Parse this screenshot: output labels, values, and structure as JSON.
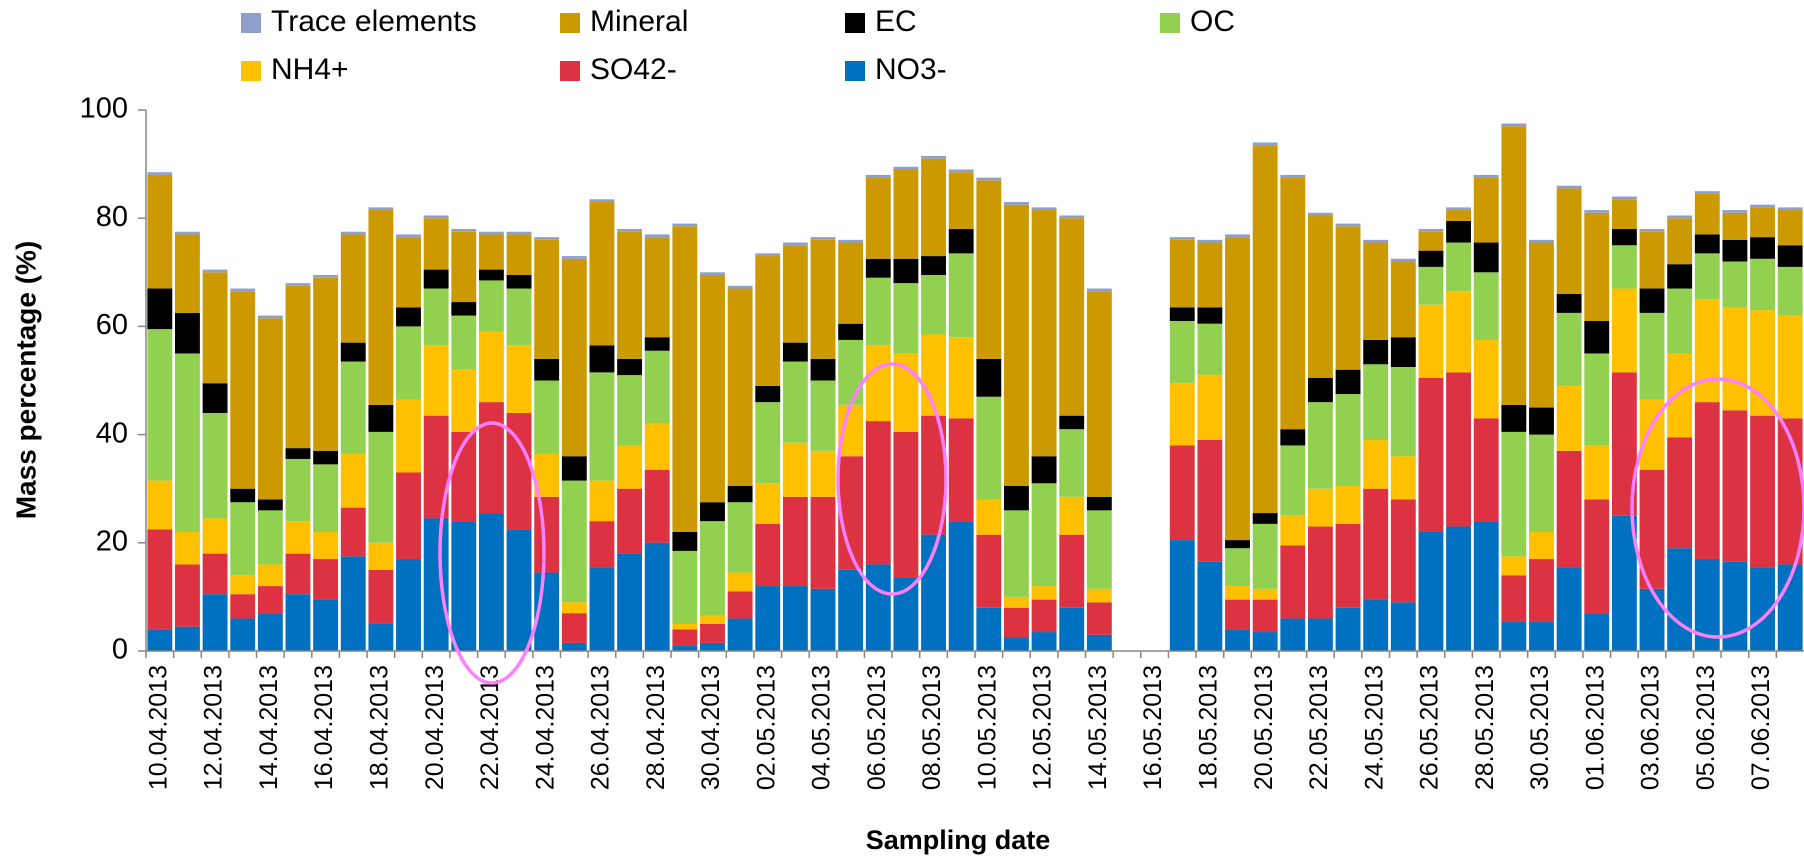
{
  "chart_data": {
    "type": "stacked_bar",
    "x_label": "Sampling date",
    "y_label": "Mass percentage (%)",
    "categories": [
      "10.04.2013",
      null,
      "12.04.2013",
      null,
      "14.04.2013",
      null,
      "16.04.2013",
      null,
      "18.04.2013",
      null,
      "20.04.2013",
      null,
      "22.04.2013",
      null,
      "24.04.2013",
      null,
      "26.04.2013",
      null,
      "28.04.2013",
      null,
      "30.04.2013",
      null,
      "02.05.2013",
      null,
      "04.05.2013",
      null,
      "06.05.2013",
      null,
      "08.05.2013",
      null,
      "10.05.2013",
      null,
      "12.05.2013",
      null,
      "14.05.2013",
      null,
      "16.05.2013",
      null,
      "18.05.2013",
      null,
      "20.05.2013",
      null,
      "22.05.2013",
      null,
      "24.05.2013",
      null,
      "26.05.2013",
      null,
      "28.05.2013",
      null,
      "30.05.2013",
      null,
      "01.06.2013",
      null,
      "03.06.2013",
      null,
      "05.06.2013",
      null,
      "07.06.2013",
      null
    ],
    "series": [
      {
        "name": "NO3-",
        "color": "#0070c0",
        "values": [
          4,
          4.5,
          10.5,
          6,
          7,
          10.5,
          9.5,
          17.5,
          5,
          17,
          24.5,
          24,
          25.5,
          22.5,
          14.5,
          1.5,
          15.5,
          18,
          20,
          1,
          1.5,
          6,
          12,
          12,
          11.5,
          15,
          16,
          13.5,
          21.5,
          24,
          8,
          2.5,
          3.5,
          8,
          3,
          null,
          null,
          20.5,
          16.5,
          4,
          3.5,
          6,
          6,
          8,
          9.5,
          9,
          22,
          23,
          24,
          5.5,
          5.5,
          15.5,
          7,
          25,
          11.5,
          19,
          17,
          16.5,
          15.5,
          16
        ]
      },
      {
        "name": "SO42-",
        "color": "#dc3242",
        "values": [
          18.5,
          11.5,
          7.5,
          4.5,
          5,
          7.5,
          7.5,
          9,
          10,
          16,
          19,
          16.5,
          20.5,
          21.5,
          14,
          5.5,
          8.5,
          12,
          13.5,
          3,
          3.5,
          5,
          11.5,
          16.5,
          17,
          21,
          26.5,
          27,
          22,
          19,
          13.5,
          5.5,
          6,
          13.5,
          6,
          null,
          null,
          17.5,
          22.5,
          5.5,
          6,
          13.5,
          17,
          15.5,
          20.5,
          19,
          28.5,
          28.5,
          19,
          8.5,
          11.5,
          21.5,
          21,
          26.5,
          22,
          20.5,
          29,
          28,
          28,
          27
        ]
      },
      {
        "name": "NH4+",
        "color": "#ffc000",
        "values": [
          9,
          6,
          6.5,
          3.5,
          4,
          6,
          5,
          10,
          5,
          13.5,
          13,
          11.5,
          13,
          12.5,
          8,
          2,
          7.5,
          8,
          8.5,
          1,
          1.5,
          3.5,
          7.5,
          10,
          8.5,
          9.5,
          14,
          14.5,
          15,
          15,
          6.5,
          2,
          2.5,
          7,
          2.5,
          null,
          null,
          11.5,
          12,
          2.5,
          2,
          5.5,
          7,
          7,
          9,
          8,
          13.5,
          15,
          14.5,
          3.5,
          5,
          12,
          10,
          15.5,
          13,
          15.5,
          19,
          19,
          19.5,
          19
        ]
      },
      {
        "name": "OC",
        "color": "#92d050",
        "values": [
          28,
          33,
          19.5,
          13.5,
          10,
          11.5,
          12.5,
          17,
          20.5,
          13.5,
          10.5,
          10,
          9.5,
          10.5,
          13.5,
          22.5,
          20,
          13,
          13.5,
          13.5,
          17.5,
          13,
          15,
          15,
          13,
          12,
          12.5,
          13,
          11,
          15.5,
          19,
          16,
          19,
          12.5,
          14.5,
          null,
          null,
          11.5,
          9.5,
          7,
          12,
          13,
          16,
          17,
          14,
          16.5,
          7,
          9,
          12.5,
          23,
          18,
          13.5,
          17,
          8,
          16,
          12,
          8.5,
          8.5,
          9.5,
          9
        ]
      },
      {
        "name": "EC",
        "color": "#000000",
        "values": [
          7.5,
          7.5,
          5.5,
          2.5,
          2,
          2,
          2.5,
          3.5,
          5,
          3.5,
          3.5,
          2.5,
          2,
          2.5,
          4,
          4.5,
          5,
          3,
          2.5,
          3.5,
          3.5,
          3,
          3,
          3.5,
          4,
          3,
          3.5,
          4.5,
          3.5,
          4.5,
          7,
          4.5,
          5,
          2.5,
          2.5,
          null,
          null,
          2.5,
          3,
          1.5,
          2,
          3,
          4.5,
          4.5,
          4.5,
          5.5,
          3,
          4,
          5.5,
          5,
          5,
          3.5,
          6,
          3,
          4.5,
          4.5,
          3.5,
          4,
          4,
          4
        ]
      },
      {
        "name": "Mineral",
        "color": "#cc9900",
        "values": [
          21,
          14.5,
          20.5,
          36.5,
          33.5,
          30,
          32,
          20,
          36,
          13,
          9.5,
          13,
          6.5,
          7.5,
          22,
          36.5,
          26.5,
          23.5,
          18.5,
          56.5,
          42,
          36.5,
          24,
          18,
          22,
          15,
          15,
          16.5,
          18,
          10.5,
          33,
          52,
          45.5,
          36.5,
          38,
          null,
          null,
          12.5,
          12,
          56,
          68,
          46.5,
          30,
          26.5,
          18,
          14,
          3.5,
          2,
          12,
          51.5,
          30.5,
          19.5,
          20,
          5.5,
          10.5,
          8.5,
          7.5,
          5,
          5.5,
          6.5
        ]
      },
      {
        "name": "Trace elements",
        "color": "#8e9fcc",
        "values": [
          0.5,
          0.5,
          0.5,
          0.5,
          0.5,
          0.5,
          0.5,
          0.5,
          0.5,
          0.5,
          0.5,
          0.5,
          0.5,
          0.5,
          0.5,
          0.5,
          0.5,
          0.5,
          0.5,
          0.5,
          0.5,
          0.5,
          0.5,
          0.5,
          0.5,
          0.5,
          0.5,
          0.5,
          0.5,
          0.5,
          0.5,
          0.5,
          0.5,
          0.5,
          0.5,
          null,
          null,
          0.5,
          0.5,
          0.5,
          0.5,
          0.5,
          0.5,
          0.5,
          0.5,
          0.5,
          0.5,
          0.5,
          0.5,
          0.5,
          0.5,
          0.5,
          0.5,
          0.5,
          0.5,
          0.5,
          0.5,
          0.5,
          0.5,
          0.5
        ]
      }
    ],
    "ylim": [
      0,
      100
    ],
    "yticks": [
      0,
      20,
      40,
      60,
      80,
      100
    ],
    "grid": false
  }
}
